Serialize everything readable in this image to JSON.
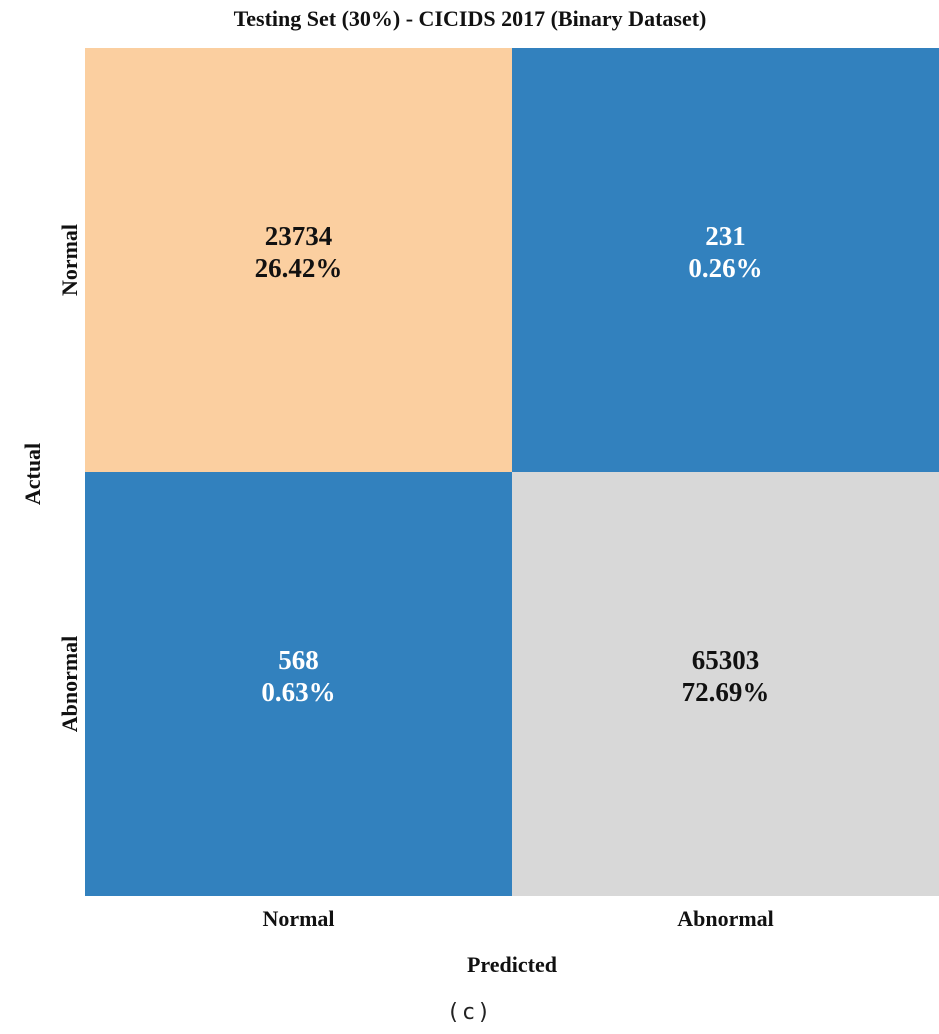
{
  "chart_data": {
    "type": "heatmap",
    "title": "Testing Set (30%) - CICIDS 2017 (Binary Dataset)",
    "xlabel": "Predicted",
    "ylabel": "Actual",
    "x_categories": [
      "Normal",
      "Abnormal"
    ],
    "y_categories": [
      "Normal",
      "Abnormal"
    ],
    "cells": [
      {
        "actual": "Normal",
        "predicted": "Normal",
        "count": "23734",
        "percent": "26.42%",
        "value": 23734,
        "color": "#fbcfa0",
        "text_color": "#111111"
      },
      {
        "actual": "Normal",
        "predicted": "Abnormal",
        "count": "231",
        "percent": "0.26%",
        "value": 231,
        "color": "#3281be",
        "text_color": "#ffffff"
      },
      {
        "actual": "Abnormal",
        "predicted": "Normal",
        "count": "568",
        "percent": "0.63%",
        "value": 568,
        "color": "#3281be",
        "text_color": "#ffffff"
      },
      {
        "actual": "Abnormal",
        "predicted": "Abnormal",
        "count": "65303",
        "percent": "72.69%",
        "value": 65303,
        "color": "#d8d8d8",
        "text_color": "#111111"
      }
    ],
    "legend": "none",
    "grid": false
  },
  "caption": "(c)"
}
